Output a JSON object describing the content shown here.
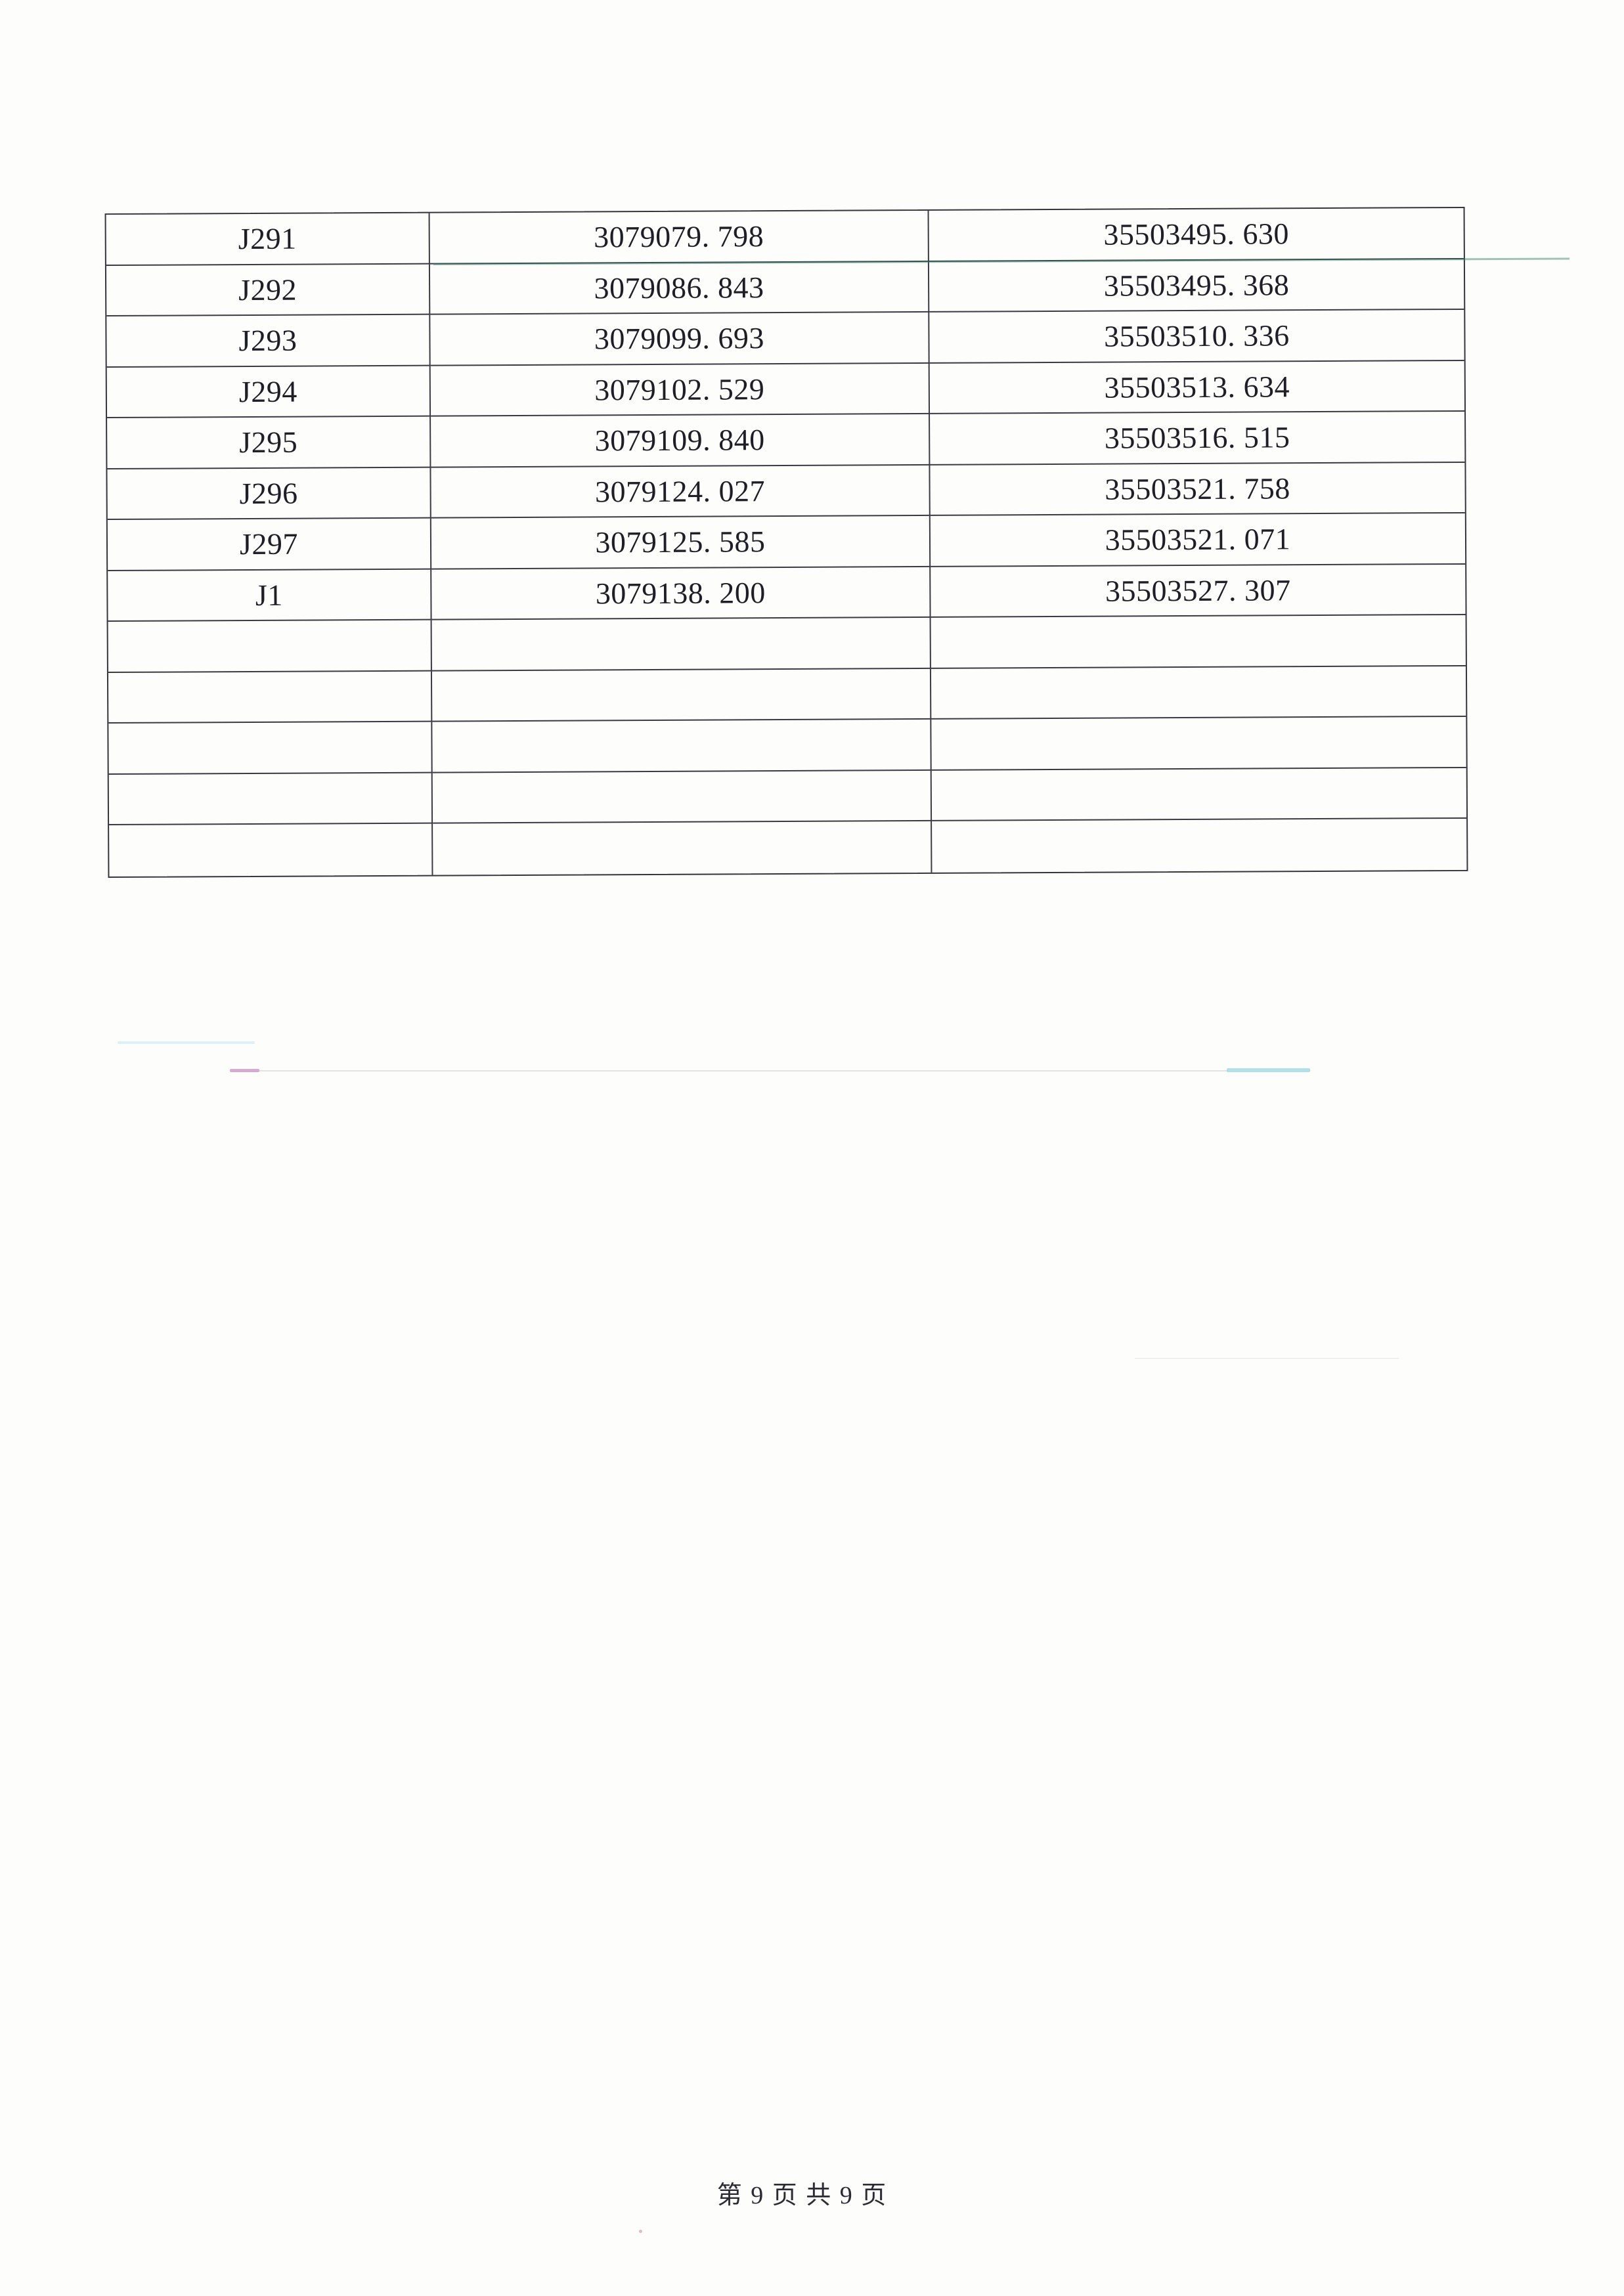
{
  "table": {
    "rows": [
      {
        "point": "J291",
        "x": "3079079. 798",
        "y": "35503495. 630"
      },
      {
        "point": "J292",
        "x": "3079086. 843",
        "y": "35503495. 368"
      },
      {
        "point": "J293",
        "x": "3079099. 693",
        "y": "35503510. 336"
      },
      {
        "point": "J294",
        "x": "3079102. 529",
        "y": "35503513. 634"
      },
      {
        "point": "J295",
        "x": "3079109. 840",
        "y": "35503516. 515"
      },
      {
        "point": "J296",
        "x": "3079124. 027",
        "y": "35503521. 758"
      },
      {
        "point": "J297",
        "x": "3079125. 585",
        "y": "35503521. 071"
      },
      {
        "point": "J1",
        "x": "3079138. 200",
        "y": "35503527. 307"
      },
      {
        "point": "",
        "x": "",
        "y": ""
      },
      {
        "point": "",
        "x": "",
        "y": ""
      },
      {
        "point": "",
        "x": "",
        "y": ""
      },
      {
        "point": "",
        "x": "",
        "y": ""
      },
      {
        "point": "",
        "x": "",
        "y": ""
      }
    ]
  },
  "footer": {
    "text": "第 9 页 共 9 页"
  },
  "colors": {
    "paper": "#fdfdfc",
    "table_border": "#35353c",
    "text": "#1e1e26",
    "teal_artifact": "#2e7d64"
  }
}
